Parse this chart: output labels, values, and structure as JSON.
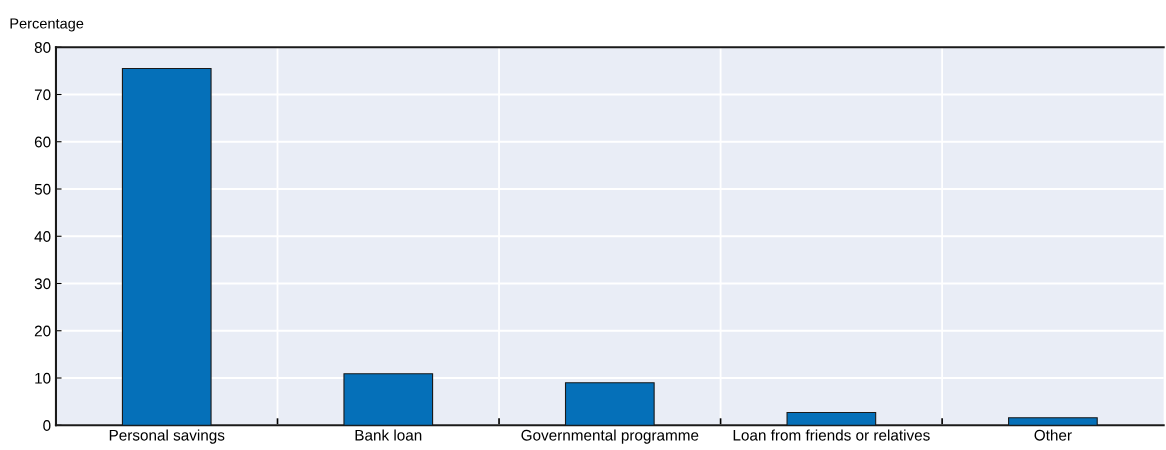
{
  "chart_data": {
    "type": "bar",
    "ylabel": "Percentage",
    "categories": [
      "Personal savings",
      "Bank loan",
      "Governmental programme",
      "Loan from friends or relatives",
      "Other"
    ],
    "values": [
      75.5,
      10.9,
      9.0,
      2.7,
      1.6
    ],
    "color": "#0570b9",
    "ylim": [
      0,
      80
    ],
    "yticks": [
      0,
      10,
      20,
      30,
      40,
      50,
      60,
      70,
      80
    ],
    "grid": true
  }
}
